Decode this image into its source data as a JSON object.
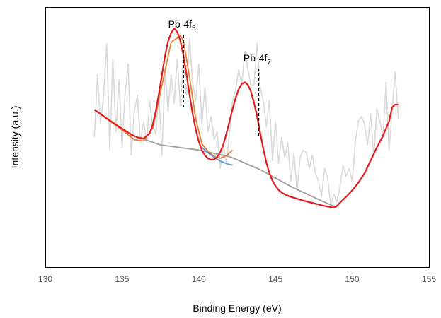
{
  "chart_data": {
    "type": "line",
    "title": "",
    "xlabel": "Binding Energy (eV)",
    "ylabel": "Intensity (a.u.)",
    "xlim": [
      130,
      155
    ],
    "xticks": [
      130,
      135,
      140,
      145,
      150,
      155
    ],
    "ylim": [
      0,
      100
    ],
    "grid": false,
    "legend": "none",
    "colors": {
      "raw": "#d9d9d9",
      "fit": "#e41a1c",
      "background": "#9e9e9e",
      "peak1": "#ed7d31",
      "peak2": "#5b9bd5"
    },
    "annotations": [
      {
        "label": "Pb-4f",
        "sub": "5",
        "x": 139.0
      },
      {
        "label": "Pb-4f",
        "sub": "7",
        "x": 143.9
      }
    ],
    "series": [
      {
        "role": "raw",
        "x": [
          133.2,
          133.4,
          133.6,
          133.8,
          134.0,
          134.2,
          134.4,
          134.6,
          134.8,
          135.0,
          135.2,
          135.4,
          135.6,
          135.8,
          136.0,
          136.2,
          136.4,
          136.6,
          136.8,
          137.0,
          137.2,
          137.4,
          137.6,
          137.8,
          138.0,
          138.2,
          138.4,
          138.6,
          138.8,
          139.0,
          139.2,
          139.4,
          139.6,
          139.8,
          140.0,
          140.2,
          140.4,
          140.6,
          140.8,
          141.0,
          141.2,
          141.4,
          141.6,
          141.8,
          142.0,
          142.2,
          142.4,
          142.6,
          142.8,
          143.0,
          143.2,
          143.4,
          143.6,
          143.8,
          144.0,
          144.2,
          144.4,
          144.6,
          144.8,
          145.0,
          145.2,
          145.4,
          145.6,
          145.8,
          146.0,
          146.2,
          146.4,
          146.6,
          146.8,
          147.0,
          147.2,
          147.4,
          147.6,
          147.8,
          148.0,
          148.2,
          148.4,
          148.6,
          148.8,
          149.0,
          149.2,
          149.4,
          149.6,
          149.8,
          150.0,
          150.2,
          150.4,
          150.6,
          150.8,
          151.0,
          151.2,
          151.4,
          151.6,
          151.8,
          152.0,
          152.2,
          152.4,
          152.6,
          152.8,
          153.0
        ],
        "values": [
          50,
          74,
          55,
          66,
          86,
          45,
          80,
          52,
          72,
          46,
          67,
          78,
          43,
          60,
          66,
          48,
          56,
          48,
          64,
          54,
          51,
          67,
          43,
          76,
          60,
          74,
          63,
          80,
          62,
          80,
          66,
          88,
          71,
          64,
          78,
          55,
          69,
          52,
          58,
          49,
          52,
          38,
          47,
          40,
          52,
          64,
          68,
          76,
          70,
          83,
          76,
          70,
          70,
          86,
          69,
          64,
          54,
          64,
          41,
          56,
          40,
          50,
          42,
          48,
          33,
          44,
          29,
          42,
          45,
          44,
          38,
          43,
          36,
          33,
          27,
          38,
          34,
          24,
          28,
          25,
          31,
          39,
          35,
          38,
          33,
          48,
          56,
          58,
          55,
          47,
          59,
          42,
          61,
          56,
          50,
          71,
          45,
          60,
          75,
          57
        ]
      },
      {
        "role": "fit",
        "x": [
          133.2,
          133.6,
          134.0,
          134.4,
          134.8,
          135.2,
          135.6,
          136.0,
          136.4,
          136.8,
          137.0,
          137.2,
          137.4,
          137.6,
          137.8,
          138.0,
          138.2,
          138.4,
          138.6,
          138.8,
          139.0,
          139.2,
          139.4,
          139.6,
          139.8,
          140.0,
          140.2,
          140.4,
          140.6,
          140.8,
          141.0,
          141.2,
          141.4,
          141.6,
          141.8,
          142.0,
          142.2,
          142.4,
          142.6,
          142.8,
          143.0,
          143.2,
          143.4,
          143.6,
          143.8,
          144.0,
          144.2,
          144.4,
          144.6,
          144.8,
          145.0,
          145.2,
          145.4,
          145.6,
          145.8,
          146.0,
          146.4,
          146.8,
          147.2,
          147.6,
          148.0,
          148.4,
          148.8,
          149.0,
          149.2,
          149.6,
          150.0,
          150.4,
          150.8,
          151.2,
          151.6,
          152.0,
          152.4,
          152.6,
          152.8,
          153.0
        ],
        "values": [
          60.5,
          58.9,
          57.2,
          55.6,
          54.0,
          52.5,
          51.0,
          49.9,
          49.5,
          51.4,
          54.8,
          60.0,
          66.6,
          74.0,
          81.2,
          86.8,
          90.1,
          91.8,
          90.5,
          87.0,
          81.5,
          74.0,
          66.3,
          59.0,
          53.0,
          48.3,
          45.0,
          43.0,
          41.8,
          41.3,
          41.4,
          42.3,
          44.2,
          47.2,
          51.3,
          56.0,
          60.7,
          65.0,
          68.4,
          70.5,
          71.1,
          70.1,
          67.5,
          63.3,
          57.9,
          51.7,
          45.6,
          40.3,
          36.2,
          33.2,
          31.2,
          29.7,
          28.7,
          28.0,
          27.5,
          27.0,
          26.3,
          25.6,
          25.0,
          24.4,
          23.8,
          23.3,
          22.9,
          23.5,
          24.8,
          27.0,
          29.5,
          32.5,
          36.0,
          41.0,
          46.0,
          50.5,
          56.0,
          61.5,
          62.5,
          62.5
        ]
      },
      {
        "role": "background",
        "x": [
          135.5,
          137.5,
          140.0,
          142.0,
          144.0,
          146.0,
          148.0,
          149.0
        ],
        "values": [
          51.0,
          47.0,
          45.0,
          42.5,
          37.5,
          31.0,
          25.5,
          23.0
        ]
      },
      {
        "role": "peak1",
        "x": [
          133.2,
          134.0,
          135.0,
          135.8,
          136.4,
          137.0,
          137.6,
          138.2,
          138.8,
          139.0,
          139.4,
          139.8,
          140.2,
          140.6,
          141.0,
          141.4,
          141.8,
          142.2
        ],
        "values": [
          60.5,
          57.0,
          52.8,
          49.0,
          48.5,
          53.5,
          70.0,
          86.5,
          89.0,
          87.0,
          73.0,
          57.0,
          47.5,
          44.5,
          42.6,
          41.9,
          42.8,
          45.0
        ]
      },
      {
        "role": "peak2",
        "x": [
          140.2,
          140.6,
          141.0,
          141.4,
          141.8,
          142.2
        ],
        "values": [
          46.0,
          44.0,
          42.2,
          40.8,
          39.8,
          39.2
        ]
      }
    ]
  }
}
